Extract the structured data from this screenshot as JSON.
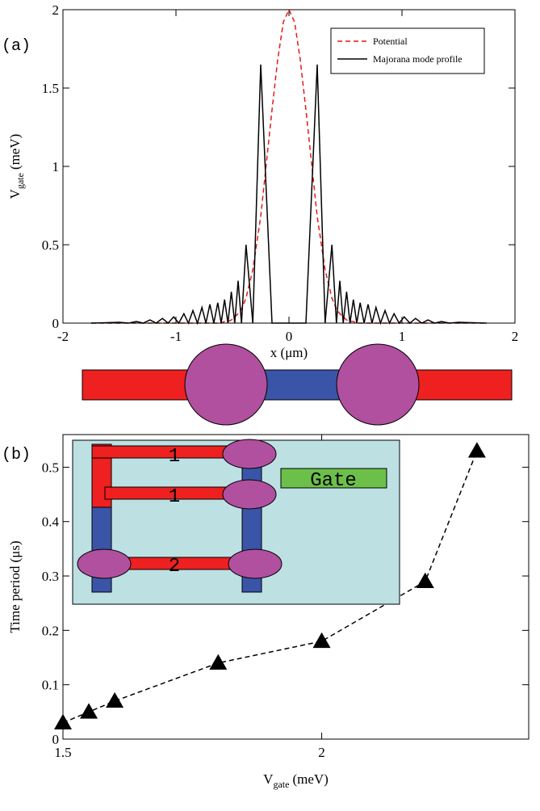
{
  "chart_data": [
    {
      "type": "line",
      "panel": "(a)",
      "xlabel": "x (μm)",
      "ylabel": {
        "text": "V",
        "sub": "gate",
        "unit": "(meV)"
      },
      "xlim": [
        -2,
        2
      ],
      "xticks": [
        -2,
        -1,
        0,
        1,
        2
      ],
      "ylim": [
        0,
        2
      ],
      "yticks": [
        0,
        0.5,
        1,
        1.5,
        2
      ],
      "legend": "upper right",
      "x": [
        -1.75,
        -1.5,
        -1.42,
        -1.35,
        -1.29,
        -1.23,
        -1.175,
        -1.12,
        -1.07,
        -1.02,
        -0.975,
        -0.93,
        -0.89,
        -0.85,
        -0.81,
        -0.77,
        -0.735,
        -0.7,
        -0.665,
        -0.63,
        -0.6,
        -0.57,
        -0.54,
        -0.51,
        -0.48,
        -0.45,
        -0.42,
        -0.38,
        -0.32,
        -0.25,
        -0.15,
        -0.1,
        -0.05,
        0,
        0.05,
        0.1,
        0.15,
        0.25,
        0.32,
        0.38,
        0.42,
        0.45,
        0.48,
        0.51,
        0.54,
        0.57,
        0.6,
        0.63,
        0.665,
        0.7,
        0.735,
        0.77,
        0.81,
        0.85,
        0.89,
        0.93,
        0.975,
        1.02,
        1.07,
        1.12,
        1.175,
        1.23,
        1.29,
        1.35,
        1.42,
        1.5,
        1.75
      ],
      "series": [
        {
          "name": "Potential",
          "color": "#e41a1c",
          "linestyle": "dashed",
          "values": [
            0,
            0,
            0,
            0,
            0,
            0,
            0,
            0,
            0,
            0,
            0,
            0,
            0,
            0,
            0,
            0,
            0,
            0,
            0,
            0,
            0,
            0.01,
            0.01,
            0.02,
            0.04,
            0.06,
            0.09,
            0.16,
            0.34,
            0.68,
            1.36,
            1.68,
            1.92,
            2,
            1.92,
            1.68,
            1.36,
            0.68,
            0.34,
            0.16,
            0.09,
            0.06,
            0.04,
            0.02,
            0.01,
            0.01,
            0,
            0,
            0,
            0,
            0,
            0,
            0,
            0,
            0,
            0,
            0,
            0,
            0,
            0,
            0,
            0,
            0,
            0,
            0,
            0,
            0
          ]
        },
        {
          "name": "Majorana mode profile",
          "color": "#000000",
          "linestyle": "solid",
          "values": [
            0,
            0.005,
            0,
            0.01,
            0,
            0.02,
            0,
            0.03,
            0,
            0.04,
            0,
            0.06,
            0,
            0.08,
            0,
            0.1,
            0,
            0.12,
            0,
            0.13,
            0,
            0.15,
            0,
            0.2,
            0,
            0.27,
            0,
            0.5,
            0,
            1.65,
            0,
            0,
            0,
            0,
            0,
            0,
            0,
            1.65,
            0,
            0.5,
            0,
            0.27,
            0,
            0.2,
            0,
            0.15,
            0,
            0.13,
            0,
            0.12,
            0,
            0.1,
            0,
            0.08,
            0,
            0.06,
            0,
            0.04,
            0,
            0.03,
            0,
            0.02,
            0,
            0.01,
            0,
            0.005,
            0
          ]
        }
      ]
    },
    {
      "type": "line",
      "panel": "(b)",
      "xlabel": {
        "text": "V",
        "sub": "gate",
        "unit": "(meV)"
      },
      "ylabel": "Time period (μs)",
      "xlim": [
        1.5,
        2.4
      ],
      "xticks": [
        1.5,
        2
      ],
      "ylim": [
        0,
        0.56
      ],
      "yticks": [
        0,
        0.1,
        0.2,
        0.3,
        0.4,
        0.5
      ],
      "annotations": [
        "1",
        "1",
        "2",
        "Gate"
      ],
      "x": [
        1.5,
        1.55,
        1.6,
        1.8,
        2.0,
        2.2,
        2.3
      ],
      "series": [
        {
          "color": "#000000",
          "linestyle": "dashed",
          "marker": "triangle",
          "values": [
            0.03,
            0.05,
            0.07,
            0.14,
            0.18,
            0.29,
            0.53
          ]
        }
      ]
    }
  ]
}
